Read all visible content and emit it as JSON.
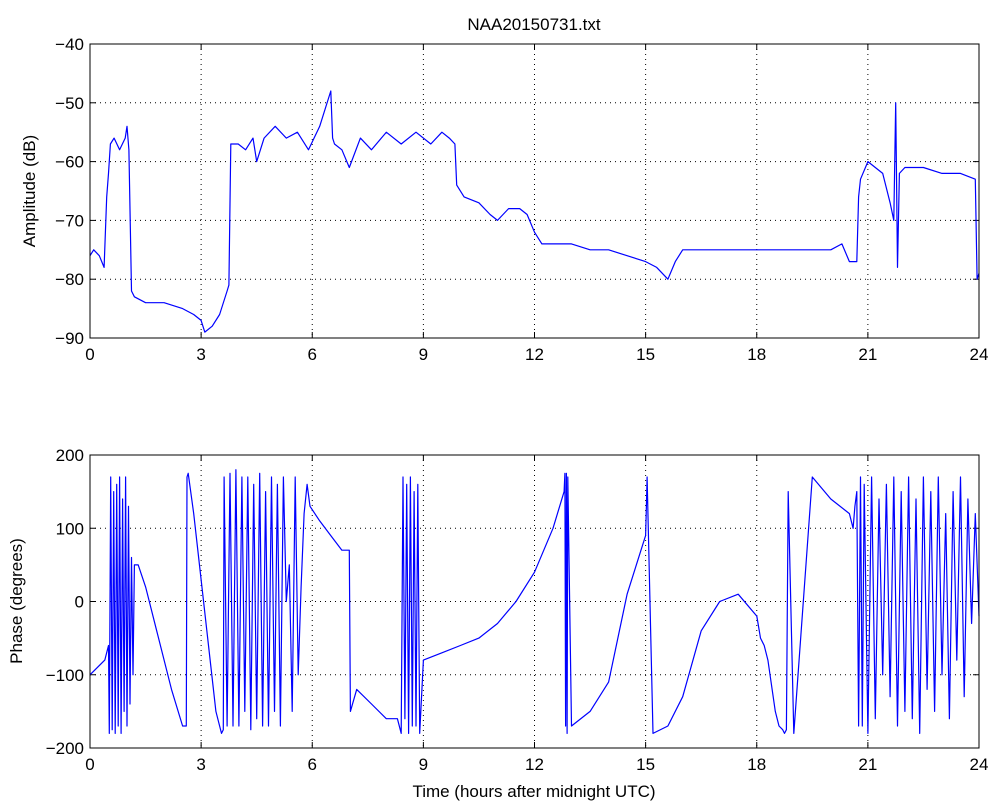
{
  "chart_data": [
    {
      "type": "line",
      "title": "NAA20150731.txt",
      "xlabel": "",
      "ylabel": "Amplitude (dB)",
      "xlim": [
        0,
        24
      ],
      "ylim": [
        -90,
        -40
      ],
      "xticks": [
        "0",
        "3",
        "6",
        "9",
        "12",
        "15",
        "18",
        "21",
        "24"
      ],
      "yticks": [
        "−90",
        "−80",
        "−70",
        "−60",
        "−50",
        "−40"
      ],
      "grid": true,
      "line_color": "#0000ff",
      "series": [
        {
          "x": [
            0,
            0.1,
            0.25,
            0.38,
            0.45,
            0.5,
            0.55,
            0.65,
            0.8,
            0.95,
            1.0,
            1.05,
            1.12,
            1.2,
            1.5,
            2.0,
            2.5,
            2.8,
            3.0,
            3.1,
            3.3,
            3.5,
            3.7,
            3.75,
            3.8,
            4.0,
            4.2,
            4.4,
            4.5,
            4.7,
            5.0,
            5.3,
            5.6,
            5.9,
            6.2,
            6.5,
            6.55,
            6.6,
            6.8,
            7.0,
            7.3,
            7.6,
            8.0,
            8.4,
            8.8,
            9.2,
            9.5,
            9.7,
            9.85,
            9.9,
            10.1,
            10.5,
            10.8,
            11.0,
            11.3,
            11.6,
            11.8,
            12.0,
            12.2,
            12.5,
            13.0,
            13.5,
            14.0,
            14.5,
            15.0,
            15.3,
            15.6,
            15.8,
            16.0,
            16.5,
            17.0,
            17.5,
            18.0,
            18.5,
            19.0,
            19.5,
            20.0,
            20.3,
            20.5,
            20.7,
            20.75,
            20.8,
            21.0,
            21.2,
            21.4,
            21.6,
            21.7,
            21.75,
            21.8,
            21.85,
            22.0,
            22.5,
            23.0,
            23.5,
            23.9,
            23.95,
            24.0
          ],
          "y": [
            -76,
            -75,
            -76,
            -78,
            -66,
            -62,
            -57,
            -56,
            -58,
            -56,
            -54,
            -58,
            -82,
            -83,
            -84,
            -84,
            -85,
            -86,
            -87,
            -89,
            -88,
            -86,
            -82,
            -81,
            -57,
            -57,
            -58,
            -56,
            -60,
            -56,
            -54,
            -56,
            -55,
            -58,
            -54,
            -48,
            -56,
            -57,
            -58,
            -61,
            -56,
            -58,
            -55,
            -57,
            -55,
            -57,
            -55,
            -56,
            -57,
            -64,
            -66,
            -67,
            -69,
            -70,
            -68,
            -68,
            -69,
            -72,
            -74,
            -74,
            -74,
            -75,
            -75,
            -76,
            -77,
            -78,
            -80,
            -77,
            -75,
            -75,
            -75,
            -75,
            -75,
            -75,
            -75,
            -75,
            -75,
            -74,
            -77,
            -77,
            -66,
            -63,
            -60,
            -61,
            -62,
            -67,
            -70,
            -50,
            -78,
            -62,
            -61,
            -61,
            -62,
            -62,
            -63,
            -80,
            -79
          ]
        }
      ]
    },
    {
      "type": "line",
      "title": "",
      "xlabel": "Time (hours after midnight UTC)",
      "ylabel": "Phase (degrees)",
      "xlim": [
        0,
        24
      ],
      "ylim": [
        -200,
        200
      ],
      "xticks": [
        "0",
        "3",
        "6",
        "9",
        "12",
        "15",
        "18",
        "21",
        "24"
      ],
      "yticks": [
        "−200",
        "−100",
        "0",
        "100",
        "200"
      ],
      "grid": true,
      "line_color": "#0000ff",
      "series": [
        {
          "x": [
            0,
            0.2,
            0.4,
            0.5,
            0.52,
            0.56,
            0.6,
            0.64,
            0.68,
            0.72,
            0.76,
            0.8,
            0.84,
            0.88,
            0.92,
            0.96,
            1.0,
            1.04,
            1.08,
            1.12,
            1.16,
            1.2,
            1.3,
            1.5,
            1.8,
            2.2,
            2.5,
            2.6,
            2.62,
            2.65,
            2.8,
            3.0,
            3.2,
            3.4,
            3.55,
            3.6,
            3.62,
            3.7,
            3.78,
            3.86,
            3.94,
            4.02,
            4.1,
            4.18,
            4.26,
            4.34,
            4.42,
            4.5,
            4.58,
            4.66,
            4.74,
            4.82,
            4.9,
            4.98,
            5.06,
            5.14,
            5.22,
            5.3,
            5.38,
            5.46,
            5.54,
            5.62,
            5.7,
            5.78,
            5.86,
            5.94,
            6.2,
            6.5,
            6.8,
            7.0,
            7.03,
            7.2,
            7.6,
            8.0,
            8.3,
            8.4,
            8.45,
            8.5,
            8.55,
            8.6,
            8.65,
            8.7,
            8.75,
            8.8,
            8.85,
            8.9,
            9.0,
            9.5,
            10.0,
            10.5,
            11.0,
            11.5,
            12.0,
            12.5,
            12.8,
            12.82,
            12.84,
            12.86,
            12.88,
            12.9,
            13.0,
            13.5,
            14.0,
            14.5,
            15.0,
            15.02,
            15.04,
            15.2,
            15.6,
            16.0,
            16.5,
            17.0,
            17.5,
            18.0,
            18.1,
            18.2,
            18.3,
            18.5,
            18.6,
            18.7,
            18.75,
            18.8,
            18.85,
            19.0,
            19.5,
            20.0,
            20.5,
            20.6,
            20.65,
            20.7,
            20.75,
            20.8,
            20.85,
            20.9,
            21.0,
            21.1,
            21.2,
            21.3,
            21.4,
            21.5,
            21.6,
            21.7,
            21.8,
            21.9,
            22.0,
            22.1,
            22.2,
            22.3,
            22.4,
            22.5,
            22.6,
            22.7,
            22.8,
            22.9,
            23.0,
            23.1,
            23.2,
            23.3,
            23.4,
            23.5,
            23.6,
            23.7,
            23.8,
            23.9,
            24.0
          ],
          "y": [
            -100,
            -90,
            -80,
            -60,
            -180,
            170,
            -175,
            150,
            -180,
            160,
            -170,
            170,
            -180,
            140,
            -150,
            170,
            -170,
            130,
            -140,
            60,
            -100,
            50,
            50,
            20,
            -40,
            -120,
            -170,
            -170,
            170,
            175,
            120,
            30,
            -60,
            -150,
            -180,
            -175,
            170,
            -170,
            175,
            -170,
            180,
            -170,
            170,
            -150,
            170,
            -175,
            160,
            -160,
            175,
            -170,
            150,
            -170,
            170,
            -150,
            160,
            -170,
            170,
            0,
            50,
            -150,
            170,
            -100,
            20,
            120,
            160,
            130,
            110,
            90,
            70,
            70,
            -150,
            -120,
            -140,
            -160,
            -160,
            -180,
            170,
            -160,
            160,
            -180,
            170,
            -170,
            150,
            -170,
            160,
            -180,
            -80,
            -70,
            -60,
            -50,
            -30,
            0,
            40,
            100,
            150,
            175,
            -170,
            175,
            -180,
            170,
            -170,
            -150,
            -110,
            10,
            90,
            130,
            170,
            -180,
            -170,
            -130,
            -40,
            0,
            10,
            -20,
            -50,
            -60,
            -80,
            -150,
            -170,
            -175,
            -180,
            -175,
            150,
            -180,
            170,
            140,
            120,
            100,
            130,
            150,
            -170,
            170,
            -170,
            160,
            -180,
            170,
            -160,
            140,
            -100,
            160,
            -130,
            170,
            -170,
            150,
            -150,
            170,
            -160,
            140,
            -180,
            170,
            -120,
            150,
            -150,
            170,
            -100,
            120,
            -160,
            150,
            -80,
            170,
            -130,
            140,
            -30,
            120,
            -20
          ]
        }
      ]
    }
  ]
}
